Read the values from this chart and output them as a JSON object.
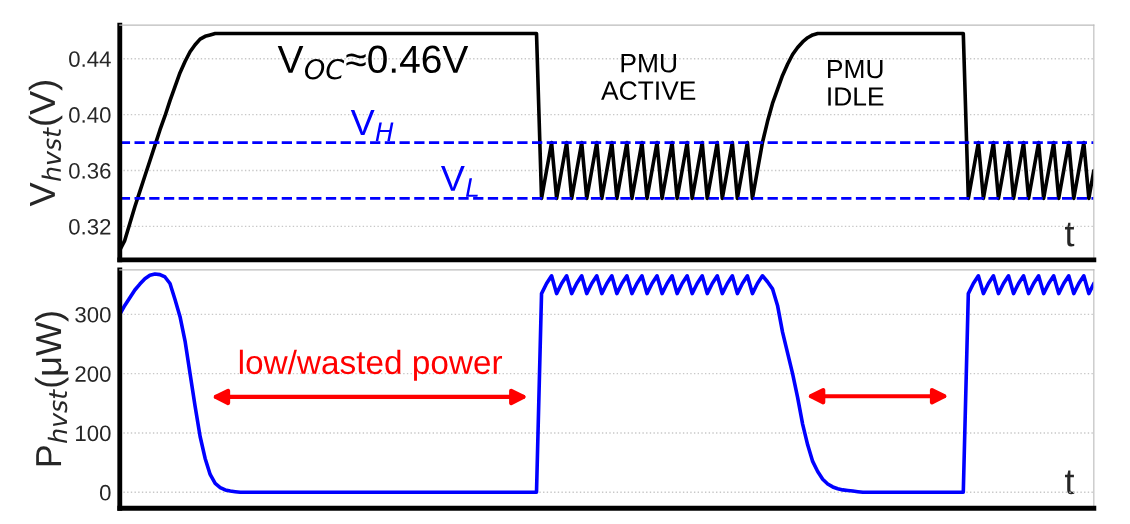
{
  "chart_data": [
    {
      "type": "line",
      "xlabel": "t",
      "ylabel": "V$_{hvst}$(V)",
      "tick_labels": "y",
      "grid": "y",
      "ylim": [
        0.296,
        0.464
      ],
      "yticks": [
        0.32,
        0.36,
        {
          "value": 0.4,
          "label": "0.40"
        },
        0.44
      ],
      "categories": [
        null,
        null,
        null,
        null,
        null,
        null,
        null,
        null,
        null,
        null,
        null,
        null,
        null,
        null,
        null,
        null,
        null,
        null,
        null,
        null,
        null,
        null,
        null,
        null,
        null,
        null,
        null,
        null,
        null,
        null,
        null,
        null,
        null,
        null,
        null,
        null,
        null,
        null,
        null,
        null,
        null,
        null,
        null,
        null,
        null,
        null,
        null,
        null,
        null,
        null,
        null,
        null,
        null,
        null,
        null,
        null,
        null,
        null,
        null,
        null,
        null,
        null,
        null,
        null,
        null,
        null,
        null,
        null,
        null,
        null,
        null,
        null,
        null,
        null,
        null,
        null,
        null,
        null,
        null,
        null,
        null,
        null,
        null,
        null,
        null,
        null,
        null,
        null,
        null,
        null,
        null,
        null,
        null,
        null,
        null,
        null,
        null,
        null,
        null,
        null,
        null,
        null,
        null,
        null,
        null,
        null,
        null,
        null,
        null,
        null,
        null,
        null,
        null,
        null,
        null,
        null,
        null,
        null,
        null,
        null,
        null,
        null,
        null,
        null,
        null,
        null,
        null,
        null,
        null,
        null,
        null,
        null,
        null,
        null,
        null,
        null,
        null,
        null,
        null,
        null,
        null,
        null,
        null,
        null,
        null,
        null,
        null,
        null,
        null,
        null,
        null,
        null,
        null,
        null,
        null,
        null,
        null,
        null,
        null,
        null,
        null,
        null,
        null,
        null,
        null,
        null,
        null,
        null,
        null,
        null,
        null,
        null,
        null,
        null,
        null,
        null,
        null,
        null,
        null,
        null,
        null,
        null,
        null,
        null,
        null,
        null,
        null,
        null,
        null,
        null,
        null,
        null,
        null,
        null,
        null
      ],
      "series": [
        {
          "color": "#000000",
          "values": [
            0.303,
            0.31,
            0.322,
            0.334,
            0.345,
            0.356,
            0.367,
            0.378,
            0.389,
            0.399,
            0.41,
            0.42,
            0.43,
            0.438,
            0.445,
            0.45,
            0.454,
            0.456,
            0.457,
            0.458,
            0.458,
            0.458,
            0.458,
            0.458,
            0.458,
            0.458,
            0.458,
            0.458,
            0.458,
            0.458,
            0.458,
            0.458,
            0.458,
            0.458,
            0.458,
            0.458,
            0.458,
            0.458,
            0.458,
            0.458,
            0.458,
            0.458,
            0.458,
            0.458,
            0.458,
            0.458,
            0.458,
            0.458,
            0.458,
            0.458,
            0.458,
            0.458,
            0.458,
            0.458,
            0.458,
            0.458,
            0.458,
            0.458,
            0.458,
            0.458,
            0.458,
            0.458,
            0.458,
            0.458,
            0.458,
            0.458,
            0.458,
            0.458,
            0.458,
            0.458,
            0.458,
            0.458,
            0.458,
            0.458,
            0.458,
            0.458,
            0.458,
            0.458,
            0.458,
            0.458,
            0.458,
            0.458,
            0.458,
            0.458,
            0.34,
            0.36,
            0.38,
            0.34,
            0.36,
            0.38,
            0.34,
            0.36,
            0.38,
            0.34,
            0.36,
            0.38,
            0.34,
            0.36,
            0.38,
            0.34,
            0.36,
            0.38,
            0.34,
            0.36,
            0.38,
            0.34,
            0.36,
            0.38,
            0.34,
            0.36,
            0.38,
            0.34,
            0.36,
            0.38,
            0.34,
            0.36,
            0.38,
            0.34,
            0.36,
            0.38,
            0.34,
            0.36,
            0.38,
            0.34,
            0.36,
            0.38,
            0.34,
            0.36,
            0.38,
            0.395,
            0.408,
            0.418,
            0.428,
            0.436,
            0.443,
            0.448,
            0.452,
            0.455,
            0.457,
            0.458,
            0.458,
            0.458,
            0.458,
            0.458,
            0.458,
            0.458,
            0.458,
            0.458,
            0.458,
            0.458,
            0.458,
            0.458,
            0.458,
            0.458,
            0.458,
            0.458,
            0.458,
            0.458,
            0.458,
            0.458,
            0.458,
            0.458,
            0.458,
            0.458,
            0.458,
            0.458,
            0.458,
            0.458,
            0.458,
            0.34,
            0.36,
            0.38,
            0.34,
            0.36,
            0.38,
            0.34,
            0.36,
            0.38,
            0.34,
            0.36,
            0.38,
            0.34,
            0.36,
            0.38,
            0.34,
            0.36,
            0.38,
            0.34,
            0.36,
            0.38,
            0.34,
            0.36,
            0.38,
            0.34,
            0.36
          ]
        }
      ],
      "ref_lines": [
        {
          "axis": "y",
          "value": 0.38,
          "label": "V$_{H}$",
          "color": "#0000ff",
          "line_style": "dashed"
        },
        {
          "axis": "y",
          "value": 0.34,
          "label": "V$_{L}$",
          "color": "#0000ff",
          "line_style": "dashed"
        }
      ],
      "annotations": [
        "V$_{OC}$≈0.46V",
        "PMU\nACTIVE",
        "PMU\nIDLE"
      ]
    },
    {
      "type": "line",
      "xlabel": "t",
      "ylabel": "P$_{hvst}$(μW)",
      "tick_labels": "y",
      "grid": "y",
      "ylim": [
        -27,
        375
      ],
      "yticks": [
        0,
        100,
        200,
        300
      ],
      "categories": [
        null,
        null,
        null,
        null,
        null,
        null,
        null,
        null,
        null,
        null,
        null,
        null,
        null,
        null,
        null,
        null,
        null,
        null,
        null,
        null,
        null,
        null,
        null,
        null,
        null,
        null,
        null,
        null,
        null,
        null,
        null,
        null,
        null,
        null,
        null,
        null,
        null,
        null,
        null,
        null,
        null,
        null,
        null,
        null,
        null,
        null,
        null,
        null,
        null,
        null,
        null,
        null,
        null,
        null,
        null,
        null,
        null,
        null,
        null,
        null,
        null,
        null,
        null,
        null,
        null,
        null,
        null,
        null,
        null,
        null,
        null,
        null,
        null,
        null,
        null,
        null,
        null,
        null,
        null,
        null,
        null,
        null,
        null,
        null,
        null,
        null,
        null,
        null,
        null,
        null,
        null,
        null,
        null,
        null,
        null,
        null,
        null,
        null,
        null,
        null,
        null,
        null,
        null,
        null,
        null,
        null,
        null,
        null,
        null,
        null,
        null,
        null,
        null,
        null,
        null,
        null,
        null,
        null,
        null,
        null,
        null,
        null,
        null,
        null,
        null,
        null,
        null,
        null,
        null,
        null,
        null,
        null,
        null,
        null,
        null,
        null,
        null,
        null,
        null,
        null,
        null,
        null,
        null,
        null,
        null,
        null,
        null,
        null,
        null,
        null,
        null,
        null,
        null,
        null,
        null,
        null,
        null,
        null,
        null,
        null,
        null,
        null,
        null,
        null,
        null,
        null,
        null,
        null,
        null,
        null,
        null,
        null,
        null,
        null,
        null,
        null,
        null,
        null,
        null,
        null,
        null,
        null,
        null,
        null,
        null,
        null,
        null,
        null,
        null,
        null,
        null,
        null,
        null,
        null,
        null
      ],
      "series": [
        {
          "color": "#0000ff",
          "values": [
            300,
            315,
            328,
            341,
            351,
            360,
            366,
            368,
            367,
            363,
            352,
            325,
            296,
            255,
            200,
            145,
            94,
            57,
            30,
            15,
            8,
            4,
            2,
            1,
            0,
            0,
            0,
            0,
            0,
            0,
            0,
            0,
            0,
            0,
            0,
            0,
            0,
            0,
            0,
            0,
            0,
            0,
            0,
            0,
            0,
            0,
            0,
            0,
            0,
            0,
            0,
            0,
            0,
            0,
            0,
            0,
            0,
            0,
            0,
            0,
            0,
            0,
            0,
            0,
            0,
            0,
            0,
            0,
            0,
            0,
            0,
            0,
            0,
            0,
            0,
            0,
            0,
            0,
            0,
            0,
            0,
            0,
            0,
            0,
            335,
            352,
            365,
            335,
            352,
            365,
            335,
            352,
            365,
            335,
            352,
            365,
            335,
            352,
            365,
            335,
            352,
            365,
            335,
            352,
            365,
            335,
            352,
            365,
            335,
            352,
            365,
            335,
            352,
            365,
            335,
            352,
            365,
            335,
            352,
            365,
            335,
            352,
            365,
            335,
            352,
            365,
            335,
            352,
            365,
            355,
            343,
            315,
            270,
            235,
            200,
            160,
            115,
            80,
            52,
            35,
            22,
            14,
            9,
            6,
            4,
            3,
            2,
            1,
            0,
            0,
            0,
            0,
            0,
            0,
            0,
            0,
            0,
            0,
            0,
            0,
            0,
            0,
            0,
            0,
            0,
            0,
            0,
            0,
            0,
            335,
            352,
            365,
            335,
            352,
            365,
            335,
            352,
            365,
            335,
            352,
            365,
            335,
            352,
            365,
            335,
            352,
            365,
            335,
            352,
            365,
            335,
            352,
            365,
            335,
            352
          ]
        }
      ],
      "annotations": [
        "low/wasted power"
      ]
    }
  ]
}
